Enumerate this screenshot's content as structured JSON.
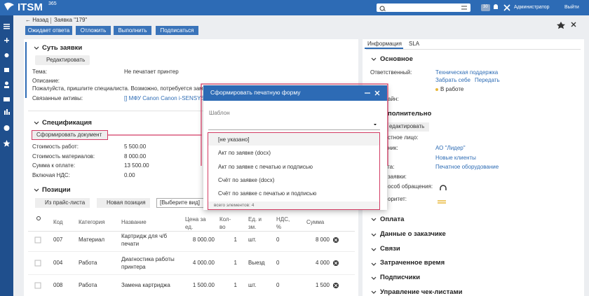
{
  "header": {
    "logo": "ITSM",
    "logo_sup": "365",
    "badge": "30",
    "user": "Администратор",
    "logout": "Выйти"
  },
  "breadcrumb": {
    "back": "← Назад",
    "current": "Заявка \"179\""
  },
  "actions": [
    "Ожидает ответа",
    "Отложить",
    "Выполнить",
    "Подписаться"
  ],
  "essence": {
    "title": "Суть заявки",
    "edit": "Редактировать",
    "topic_label": "Тема:",
    "topic": "Не печатает принтер",
    "description_label": "Описание:",
    "description": "Пожалуйста, пришлите специалиста. Возможно, потребуется зам",
    "assets_label": "Связанные активы:",
    "assets": "[] МФУ Canon Canon i-SENSYS"
  },
  "spec": {
    "title": "Спецификация",
    "button": "Сформировать документ",
    "fields": [
      {
        "label": "Стоимость работ:",
        "value": "5 500.00"
      },
      {
        "label": "Стоимость материалов:",
        "value": "8 000.00"
      },
      {
        "label": "Сумма к оплате:",
        "value": "13 500.00"
      },
      {
        "label": "Включая НДС:",
        "value": "0.00"
      }
    ]
  },
  "positions": {
    "title": "Позиции",
    "add_price": "Из прайс-листа",
    "add_new": "Новая позиция",
    "kind": "[Выберите вид]",
    "columns": [
      "Код",
      "Категория",
      "Название",
      "Цена за ед.",
      "Кол-во",
      "Ед. изм.",
      "НДС, %",
      "Сумма"
    ],
    "rows": [
      [
        "007",
        "Материал",
        "Картридж для ч/б печати",
        "8 000.00",
        "1",
        "шт.",
        "0",
        "8 000"
      ],
      [
        "004",
        "Работа",
        "Диагностика работы принтера",
        "4 000.00",
        "1",
        "Выезд",
        "0",
        "4 000"
      ],
      [
        "008",
        "Работа",
        "Замена картриджа",
        "1 500.00",
        "1",
        "шт.",
        "0",
        "1 500"
      ]
    ]
  },
  "info": {
    "tabs": [
      "Информация",
      "SLA"
    ],
    "main_title": "Основное",
    "responsible_label": "Ответственный:",
    "responsible": "Техническая поддержка",
    "take": "Забрать себе",
    "pass": "Передать",
    "state": "В работе",
    "deadline_label": "айн:",
    "extra_title": "полнительно",
    "extra_edit": "едактировать",
    "contact_label": "стное лицо:",
    "client_label": "ник:",
    "client": "АО \"Лидер\"",
    "client_group": "Новые клиенты",
    "service_label": "га:",
    "service": "Печатное оборудование",
    "type_label": "заявки:",
    "channel_label": "особ обращения:",
    "priority_label": "оритет:",
    "sections": [
      "Оплата",
      "Данные о заказчике",
      "Связи",
      "Затраченное время",
      "Подписчики",
      "Управление чек-листами"
    ]
  },
  "dialog": {
    "title": "Сформировать печатную форму",
    "field_label": "Шаблон",
    "options": [
      "[не указано]",
      "Акт по заявке (docx)",
      "Акт по заявке с печатью и подписью",
      "Счёт по заявке (docx)",
      "Счёт по заявке с печатью и подписью"
    ],
    "footer": "всего элементов: 4"
  }
}
